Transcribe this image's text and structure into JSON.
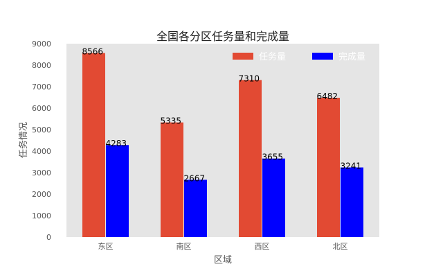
{
  "chart_data": {
    "type": "bar",
    "title": "全国各分区任务量和完成量",
    "xlabel": "区域",
    "ylabel": "任务情况",
    "categories": [
      "东区",
      "南区",
      "西区",
      "北区"
    ],
    "series": [
      {
        "name": "任务量",
        "values": [
          8566,
          5335,
          7310,
          6482
        ],
        "color": "#E24A33"
      },
      {
        "name": "完成量",
        "values": [
          4283,
          2667,
          3655,
          3241
        ],
        "color": "#0000FF"
      }
    ],
    "ylim": [
      0,
      9000
    ],
    "yticks": [
      0,
      1000,
      2000,
      3000,
      4000,
      5000,
      6000,
      7000,
      8000,
      9000
    ],
    "grid": false,
    "legend_position": "top-right",
    "background": "#E5E5E5"
  }
}
